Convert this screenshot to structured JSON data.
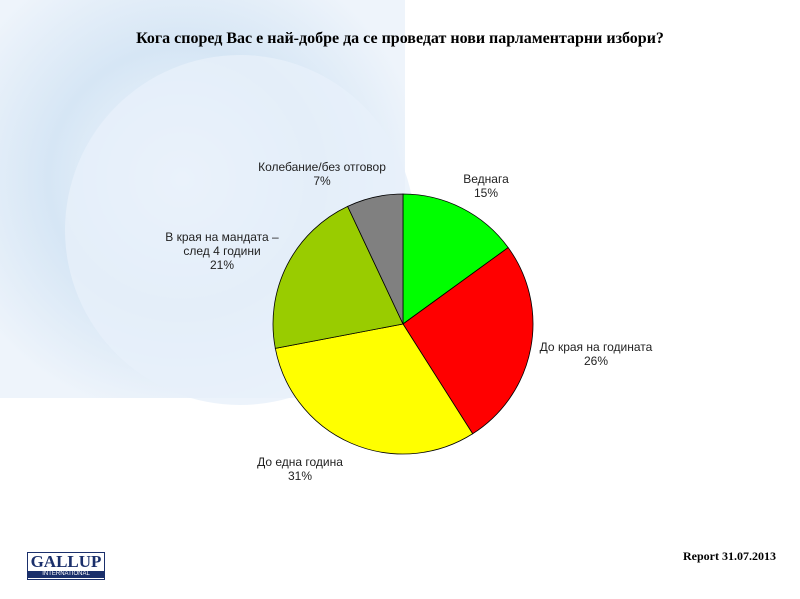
{
  "chart_data": {
    "type": "pie",
    "title": "Кога според Вас е най-добре да се проведат нови парламентарни избори?",
    "categories": [
      "Веднага",
      "До края на годината",
      "До една година",
      "В края на мандата – след 4 години",
      "Колебание/без отговор"
    ],
    "values": [
      15,
      26,
      31,
      21,
      7
    ],
    "value_labels": [
      "15%",
      "26%",
      "31%",
      "21%",
      "7%"
    ],
    "colors": [
      "#00ff00",
      "#ff0000",
      "#ffff00",
      "#99cc00",
      "#808080"
    ]
  },
  "footer": {
    "report": "Report 31.07.2013",
    "logo": "GALLUP",
    "logo_sub": "INTERNATIONAL"
  }
}
